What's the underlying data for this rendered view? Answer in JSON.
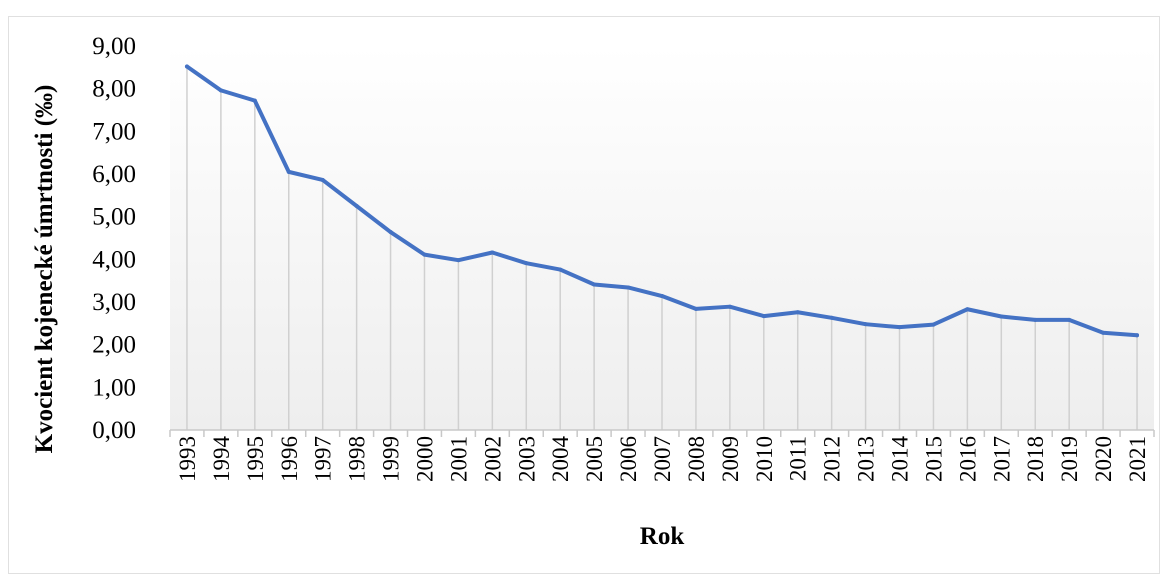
{
  "chart_data": {
    "type": "line",
    "title": "",
    "xlabel": "Rok",
    "ylabel": "Kvocient kojenecké úmrtnosti (‰)",
    "ylim": [
      0,
      9
    ],
    "y_ticks": [
      "0,00",
      "1,00",
      "2,00",
      "3,00",
      "4,00",
      "5,00",
      "6,00",
      "7,00",
      "8,00",
      "9,00"
    ],
    "categories": [
      "1993",
      "1994",
      "1995",
      "1996",
      "1997",
      "1998",
      "1999",
      "2000",
      "2001",
      "2002",
      "2003",
      "2004",
      "2005",
      "2006",
      "2007",
      "2008",
      "2009",
      "2010",
      "2011",
      "2012",
      "2013",
      "2014",
      "2015",
      "2016",
      "2017",
      "2018",
      "2019",
      "2020",
      "2021"
    ],
    "series": [
      {
        "values": [
          8.52,
          7.96,
          7.72,
          6.05,
          5.86,
          5.25,
          4.64,
          4.11,
          3.98,
          4.16,
          3.91,
          3.76,
          3.41,
          3.34,
          3.14,
          2.84,
          2.89,
          2.67,
          2.76,
          2.63,
          2.48,
          2.41,
          2.47,
          2.83,
          2.66,
          2.58,
          2.58,
          2.28,
          2.22
        ],
        "color": "#4472c4"
      }
    ],
    "grid": "vertical drop lines",
    "legend": "none"
  }
}
